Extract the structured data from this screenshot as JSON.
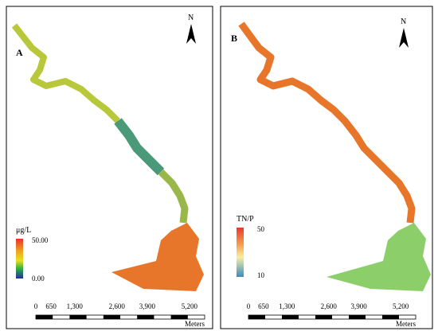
{
  "panels": [
    {
      "label": "A",
      "north": "N",
      "legend": {
        "title": "μg/L",
        "max": "50.00",
        "min": "0.00"
      }
    },
    {
      "label": "B",
      "north": "N",
      "legend": {
        "title": "TN/P",
        "max": "50",
        "min": "10"
      }
    }
  ],
  "scale_bar": {
    "labels": [
      "0",
      "650",
      "1,300",
      "2,600",
      "3,900",
      "5,200"
    ],
    "unit": "Meters"
  }
}
